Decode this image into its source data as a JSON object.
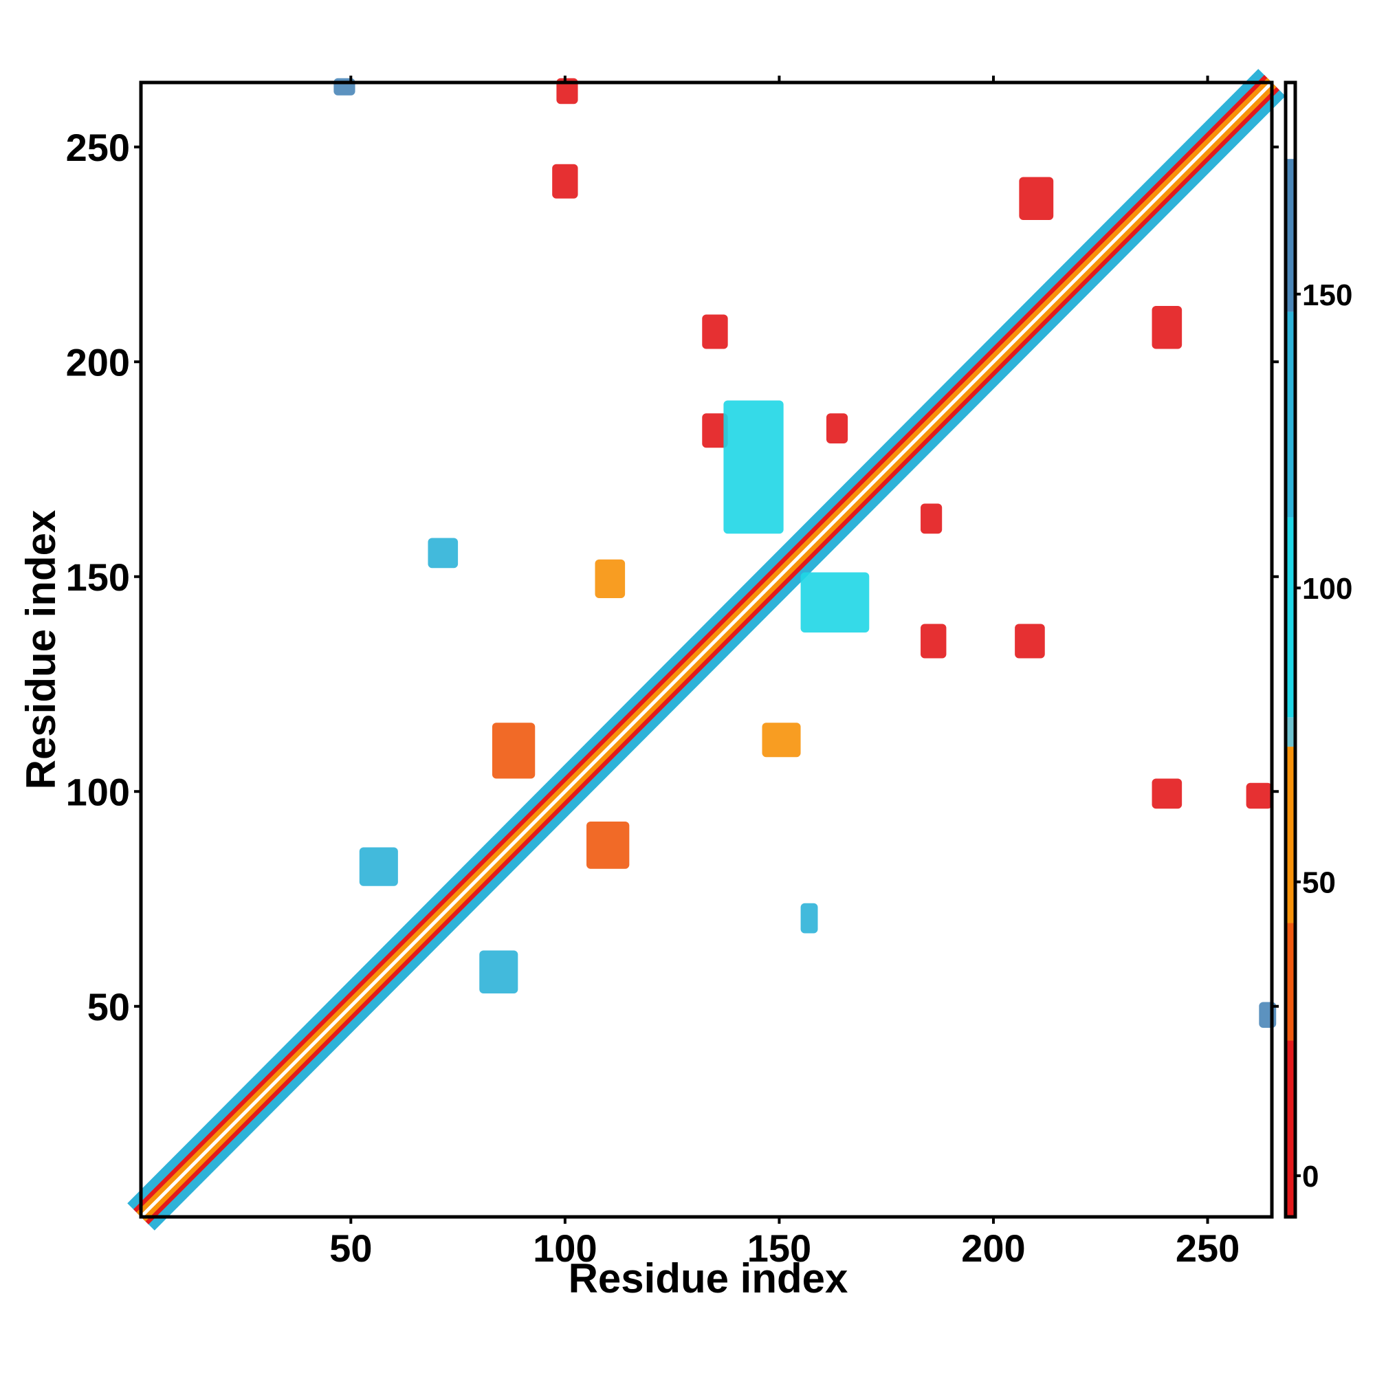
{
  "chart_data": {
    "type": "heatmap",
    "title": "",
    "xlabel": "Residue index",
    "ylabel": "Residue index",
    "xlim": [
      1,
      265
    ],
    "ylim": [
      1,
      265
    ],
    "x_ticks": [
      50,
      100,
      150,
      200,
      250
    ],
    "y_ticks": [
      50,
      100,
      150,
      200,
      250
    ],
    "grid": false,
    "legend": "right (colorbar)",
    "colorbar": {
      "range": [
        -7,
        186
      ],
      "ticks": [
        0,
        50,
        100,
        150
      ],
      "segments": [
        {
          "from": -7,
          "to": 23,
          "color": "#e31a1c"
        },
        {
          "from": 23,
          "to": 43,
          "color": "#f05a10"
        },
        {
          "from": 43,
          "to": 73,
          "color": "#f7920a"
        },
        {
          "from": 73,
          "to": 78,
          "color": "#6ec3cf"
        },
        {
          "from": 78,
          "to": 112,
          "color": "#1fd6e6"
        },
        {
          "from": 112,
          "to": 147,
          "color": "#2eb2d8"
        },
        {
          "from": 147,
          "to": 173,
          "color": "#4a86b8"
        },
        {
          "from": 173,
          "to": 186,
          "color": "#ffffff"
        }
      ]
    },
    "diagonal_band": {
      "from": 1,
      "to": 265,
      "color_inner": "#f7920a",
      "color_edge": "#e31a1c",
      "color_outer": "#2eb2d8"
    },
    "contact_regions": [
      {
        "x": [
          97,
          102
        ],
        "y": [
          238,
          245
        ],
        "color": "#e31a1c"
      },
      {
        "x": [
          98,
          102
        ],
        "y": [
          260,
          265
        ],
        "color": "#e31a1c"
      },
      {
        "x": [
          132,
          137
        ],
        "y": [
          203,
          210
        ],
        "color": "#e31a1c"
      },
      {
        "x": [
          132,
          137
        ],
        "y": [
          180,
          187
        ],
        "color": "#e31a1c"
      },
      {
        "x": [
          161,
          165
        ],
        "y": [
          181,
          187
        ],
        "color": "#e31a1c"
      },
      {
        "x": [
          183,
          187
        ],
        "y": [
          160,
          166
        ],
        "color": "#e31a1c"
      },
      {
        "x": [
          183,
          188
        ],
        "y": [
          131,
          138
        ],
        "color": "#e31a1c"
      },
      {
        "x": [
          205,
          211
        ],
        "y": [
          131,
          138
        ],
        "color": "#e31a1c"
      },
      {
        "x": [
          206,
          213
        ],
        "y": [
          233,
          242
        ],
        "color": "#e31a1c"
      },
      {
        "x": [
          237,
          243
        ],
        "y": [
          203,
          212
        ],
        "color": "#e31a1c"
      },
      {
        "x": [
          237,
          243
        ],
        "y": [
          96,
          102
        ],
        "color": "#e31a1c"
      },
      {
        "x": [
          259,
          264
        ],
        "y": [
          96,
          101
        ],
        "color": "#e31a1c"
      },
      {
        "x": [
          46,
          50
        ],
        "y": [
          262,
          265
        ],
        "color": "#4a86b8"
      },
      {
        "x": [
          262,
          265
        ],
        "y": [
          45,
          50
        ],
        "color": "#4a86b8"
      },
      {
        "x": [
          80,
          88
        ],
        "y": [
          53,
          62
        ],
        "color": "#2eb2d8"
      },
      {
        "x": [
          52,
          60
        ],
        "y": [
          78,
          86
        ],
        "color": "#2eb2d8"
      },
      {
        "x": [
          155,
          158
        ],
        "y": [
          67,
          73
        ],
        "color": "#2eb2d8"
      },
      {
        "x": [
          68,
          74
        ],
        "y": [
          152,
          158
        ],
        "color": "#2eb2d8"
      },
      {
        "x": [
          137,
          150
        ],
        "y": [
          160,
          190
        ],
        "color": "#1fd6e6"
      },
      {
        "x": [
          155,
          170
        ],
        "y": [
          137,
          150
        ],
        "color": "#1fd6e6"
      },
      {
        "x": [
          83,
          92
        ],
        "y": [
          103,
          115
        ],
        "color": "#f05a10"
      },
      {
        "x": [
          105,
          114
        ],
        "y": [
          82,
          92
        ],
        "color": "#f05a10"
      },
      {
        "x": [
          146,
          154
        ],
        "y": [
          108,
          115
        ],
        "color": "#f7920a"
      },
      {
        "x": [
          107,
          113
        ],
        "y": [
          145,
          153
        ],
        "color": "#f7920a"
      }
    ]
  }
}
